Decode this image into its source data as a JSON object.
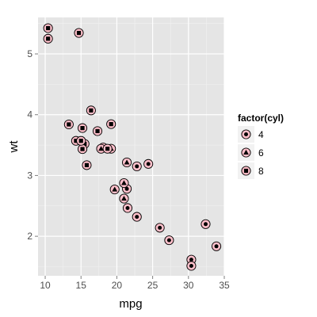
{
  "chart_data": {
    "type": "scatter",
    "title": "",
    "xlabel": "mpg",
    "ylabel": "wt",
    "xlim": [
      9.0,
      35.0
    ],
    "ylim": [
      1.35,
      5.6
    ],
    "x_ticks": [
      10,
      15,
      20,
      25,
      30,
      35
    ],
    "y_ticks": [
      2,
      3,
      4,
      5
    ],
    "grid": true,
    "legend": {
      "title": "factor(cyl)",
      "placement": "right",
      "entries": [
        {
          "label": "4",
          "shape": "circle"
        },
        {
          "label": "6",
          "shape": "triangle"
        },
        {
          "label": "8",
          "shape": "square"
        }
      ]
    },
    "colors": {
      "panel_background": "#e5e5e5",
      "grid_major": "#ffffff",
      "grid_minor": "#f2f2f2",
      "outer_marker_fill": "#ffc0cb",
      "outer_marker_stroke": "#000000",
      "inner_marker_fill": "#000000",
      "legend_key_background": "#f2f2f2"
    },
    "series": [
      {
        "name": "4",
        "shape": "circle",
        "points": [
          {
            "x": 22.8,
            "y": 2.32
          },
          {
            "x": 24.4,
            "y": 3.19
          },
          {
            "x": 22.8,
            "y": 3.15
          },
          {
            "x": 32.4,
            "y": 2.2
          },
          {
            "x": 30.4,
            "y": 1.615
          },
          {
            "x": 33.9,
            "y": 1.835
          },
          {
            "x": 21.5,
            "y": 2.465
          },
          {
            "x": 27.3,
            "y": 1.935
          },
          {
            "x": 26.0,
            "y": 2.14
          },
          {
            "x": 30.4,
            "y": 1.513
          },
          {
            "x": 21.4,
            "y": 2.78
          }
        ]
      },
      {
        "name": "6",
        "shape": "triangle",
        "points": [
          {
            "x": 21.0,
            "y": 2.62
          },
          {
            "x": 21.0,
            "y": 2.875
          },
          {
            "x": 21.4,
            "y": 3.215
          },
          {
            "x": 18.1,
            "y": 3.46
          },
          {
            "x": 19.2,
            "y": 3.44
          },
          {
            "x": 17.8,
            "y": 3.44
          },
          {
            "x": 19.7,
            "y": 2.77
          }
        ]
      },
      {
        "name": "8",
        "shape": "square",
        "points": [
          {
            "x": 18.7,
            "y": 3.44
          },
          {
            "x": 14.3,
            "y": 3.57
          },
          {
            "x": 16.4,
            "y": 4.07
          },
          {
            "x": 17.3,
            "y": 3.73
          },
          {
            "x": 15.2,
            "y": 3.78
          },
          {
            "x": 10.4,
            "y": 5.25
          },
          {
            "x": 10.4,
            "y": 5.424
          },
          {
            "x": 14.7,
            "y": 5.345
          },
          {
            "x": 15.5,
            "y": 3.52
          },
          {
            "x": 15.2,
            "y": 3.435
          },
          {
            "x": 13.3,
            "y": 3.84
          },
          {
            "x": 19.2,
            "y": 3.845
          },
          {
            "x": 15.8,
            "y": 3.17
          },
          {
            "x": 15.0,
            "y": 3.57
          }
        ]
      }
    ]
  }
}
